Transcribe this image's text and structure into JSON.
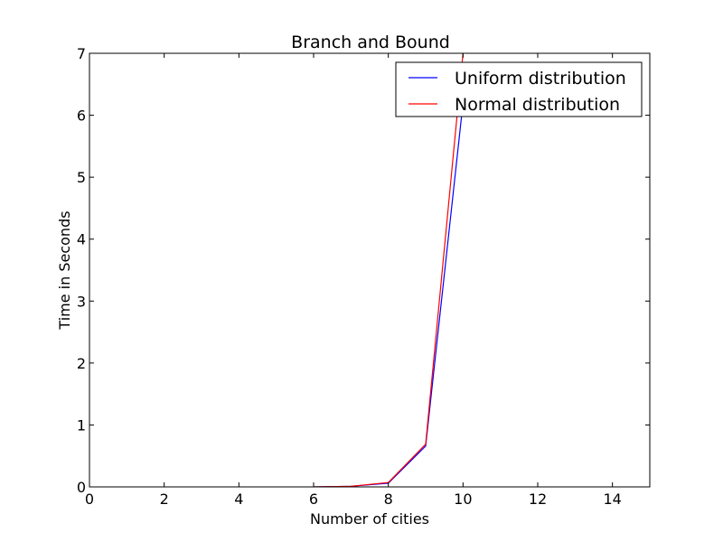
{
  "chart_data": {
    "type": "line",
    "title": "Branch and Bound",
    "xlabel": "Number of cities",
    "ylabel": "Time in Seconds",
    "xlim": [
      0,
      15
    ],
    "ylim": [
      0,
      7
    ],
    "xticks": [
      0,
      2,
      4,
      6,
      8,
      10,
      12,
      14
    ],
    "yticks": [
      0,
      1,
      2,
      3,
      4,
      5,
      6,
      7
    ],
    "grid": false,
    "legend_position": "top-right",
    "series": [
      {
        "name": "Uniform distribution",
        "color": "#0000ff",
        "x": [
          6,
          7,
          8,
          9,
          10
        ],
        "y": [
          0.0,
          0.01,
          0.06,
          0.66,
          6.2
        ]
      },
      {
        "name": "Normal distribution",
        "color": "#ff0000",
        "x": [
          6,
          7,
          8,
          9,
          10
        ],
        "y": [
          0.0,
          0.01,
          0.07,
          0.69,
          7.0
        ]
      }
    ]
  }
}
